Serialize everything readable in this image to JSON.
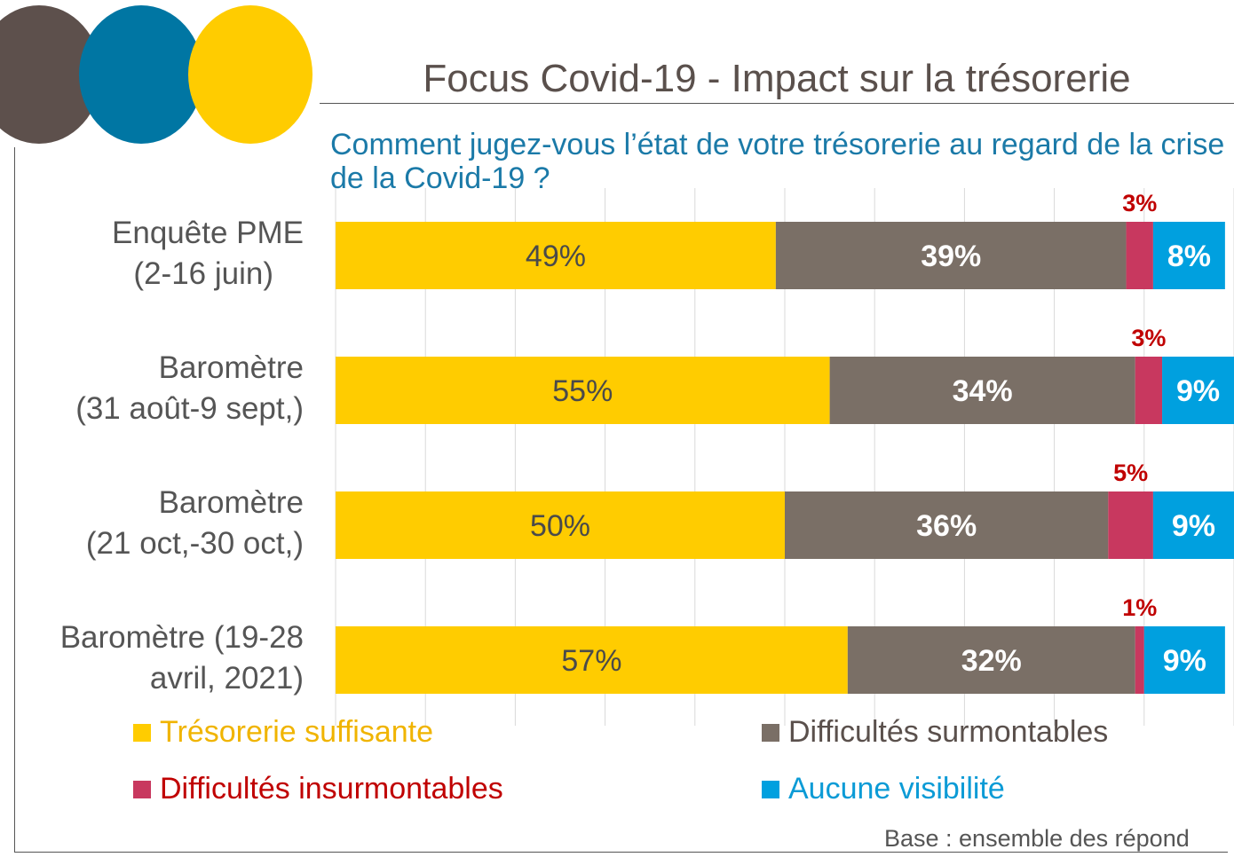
{
  "colors": {
    "circle1": "#5d504c",
    "circle2": "#0076a3",
    "circle3": "#ffcc00",
    "grid": "#d9d9d9"
  },
  "header": {
    "title": "Focus Covid-19 - Impact sur la trésorerie",
    "question": "Comment jugez-vous l’état de votre trésorerie au regard de la crise de la Covid-19 ?"
  },
  "footer": {
    "base_note": "Base :  ensemble des répond"
  },
  "chart_data": {
    "type": "bar",
    "orientation": "horizontal",
    "stacked": true,
    "xlim": [
      0,
      100
    ],
    "grid": true,
    "legend_position": "bottom",
    "categories": [
      [
        "Enquête PME",
        "(2-16 juin)"
      ],
      [
        "Baromètre",
        "(31 août-9 sept,)"
      ],
      [
        "Baromètre",
        "(21 oct,-30 oct,)"
      ],
      [
        "Baromètre (19-28",
        "avril, 2021)"
      ]
    ],
    "series": [
      {
        "name": "Trésorerie suffisante",
        "color": "#ffcc00",
        "label_color": "#f0b400",
        "value_style": "dark",
        "values": [
          49,
          55,
          50,
          57
        ],
        "labels": [
          "49%",
          "55%",
          "50%",
          "57%"
        ]
      },
      {
        "name": "Difficultés surmontables",
        "color": "#7a6f66",
        "label_color": "#5a504c",
        "value_style": "light",
        "values": [
          39,
          34,
          36,
          32
        ],
        "labels": [
          "39%",
          "34%",
          "36%",
          "32%"
        ]
      },
      {
        "name": "Difficultés insurmontables",
        "color": "#c8385f",
        "label_color": "#c00000",
        "value_style": "above",
        "values": [
          3,
          3,
          5,
          1
        ],
        "labels": [
          "3%",
          "3%",
          "5%",
          "1%"
        ]
      },
      {
        "name": "Aucune visibilité",
        "color": "#00a0df",
        "label_color": "#0b9bd6",
        "value_style": "light",
        "values": [
          8,
          9,
          9,
          9
        ],
        "labels": [
          "8%",
          "9%",
          "9%",
          "9%"
        ]
      }
    ]
  }
}
